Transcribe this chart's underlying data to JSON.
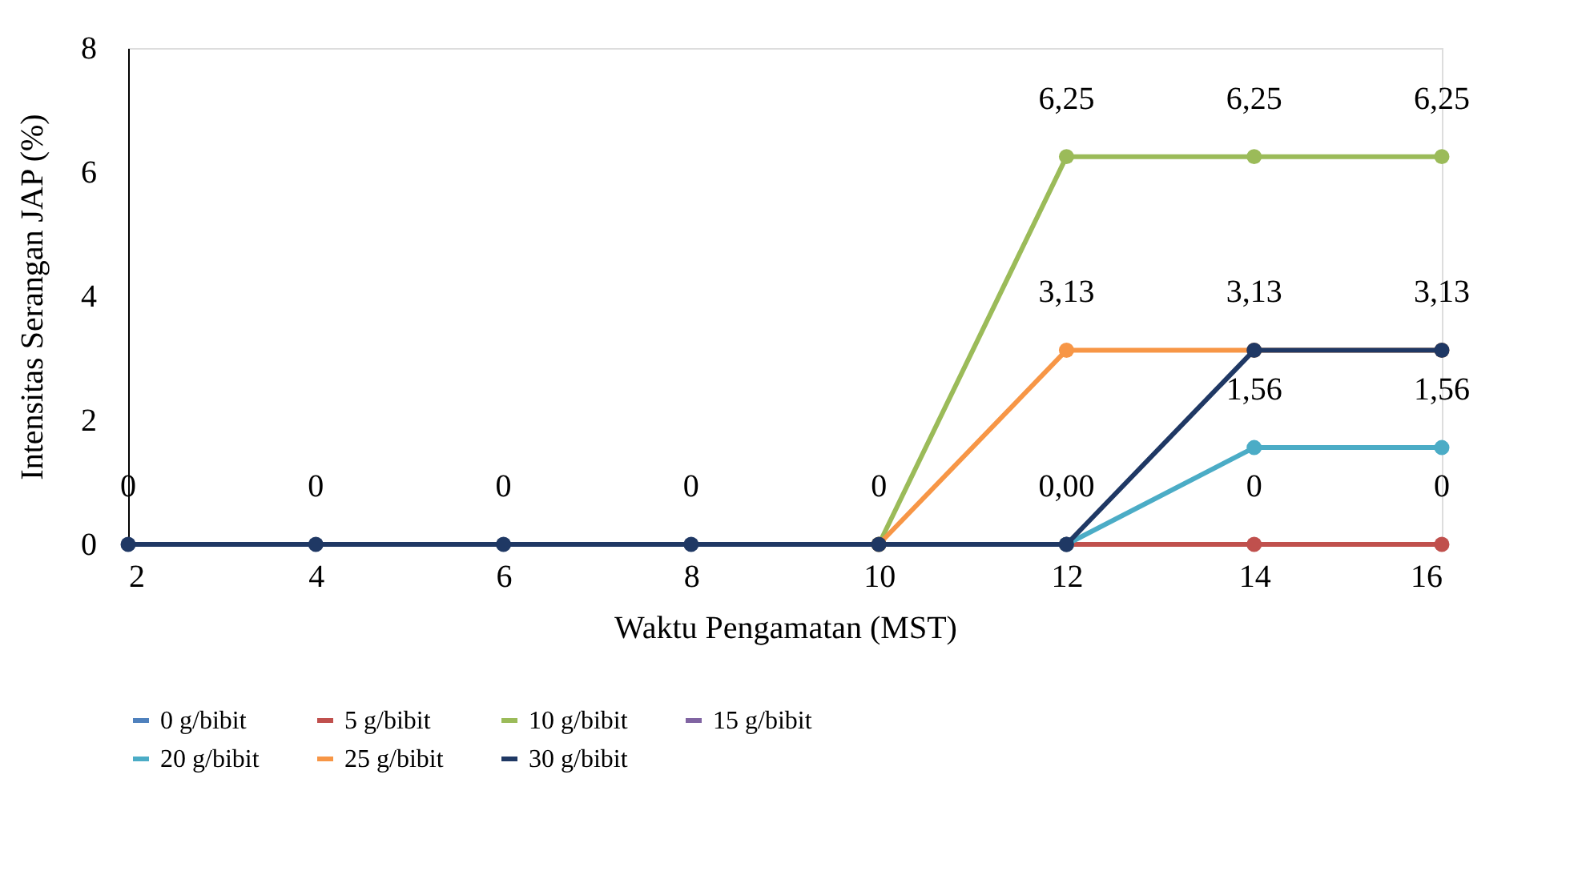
{
  "chart_data": {
    "type": "line",
    "xlabel": "Waktu Pengamatan (MST)",
    "ylabel": "Intensitas Serangan JAP (%)",
    "x": [
      2,
      4,
      6,
      8,
      10,
      12,
      14,
      16
    ],
    "xlim": [
      2,
      16
    ],
    "xticks": [
      2,
      4,
      6,
      8,
      10,
      12,
      14,
      16
    ],
    "ylim": [
      0,
      8
    ],
    "yticks": [
      0,
      2,
      4,
      6,
      8
    ],
    "grid": false,
    "legend": "bottom",
    "marker": "circle",
    "line_style": "solid",
    "series": [
      {
        "name": "0 g/bibit",
        "color": "#4f81bd",
        "values": [
          null,
          null,
          null,
          null,
          null,
          null,
          null,
          null
        ]
      },
      {
        "name": "5 g/bibit",
        "color": "#c0504d",
        "values": [
          null,
          null,
          null,
          null,
          null,
          0,
          0,
          0
        ],
        "value_labels": [
          null,
          null,
          null,
          null,
          null,
          null,
          "0",
          "0"
        ]
      },
      {
        "name": "10 g/bibit",
        "color": "#9bbb59",
        "values": [
          null,
          null,
          null,
          null,
          0,
          6.25,
          6.25,
          6.25
        ],
        "value_labels": [
          null,
          null,
          null,
          null,
          null,
          "6,25",
          "6,25",
          "6,25"
        ]
      },
      {
        "name": "15 g/bibit",
        "color": "#8064a2",
        "values": [
          null,
          null,
          null,
          null,
          null,
          null,
          null,
          null
        ]
      },
      {
        "name": "20 g/bibit",
        "color": "#4bacc6",
        "values": [
          null,
          null,
          null,
          null,
          null,
          0,
          1.56,
          1.56
        ],
        "value_labels": [
          null,
          null,
          null,
          null,
          null,
          null,
          "1,56",
          "1,56"
        ]
      },
      {
        "name": "25 g/bibit",
        "color": "#f79646",
        "values": [
          null,
          null,
          null,
          null,
          0,
          3.13,
          3.13,
          3.13
        ],
        "value_labels": [
          null,
          null,
          null,
          null,
          null,
          "3,13",
          null,
          null
        ]
      },
      {
        "name": "30 g/bibit",
        "color": "#1f3864",
        "values": [
          0,
          0,
          0,
          0,
          0,
          0,
          3.13,
          3.13
        ],
        "value_labels": [
          "0",
          "0",
          "0",
          "0",
          "0",
          "0,00",
          "3,13",
          "3,13"
        ]
      }
    ]
  }
}
